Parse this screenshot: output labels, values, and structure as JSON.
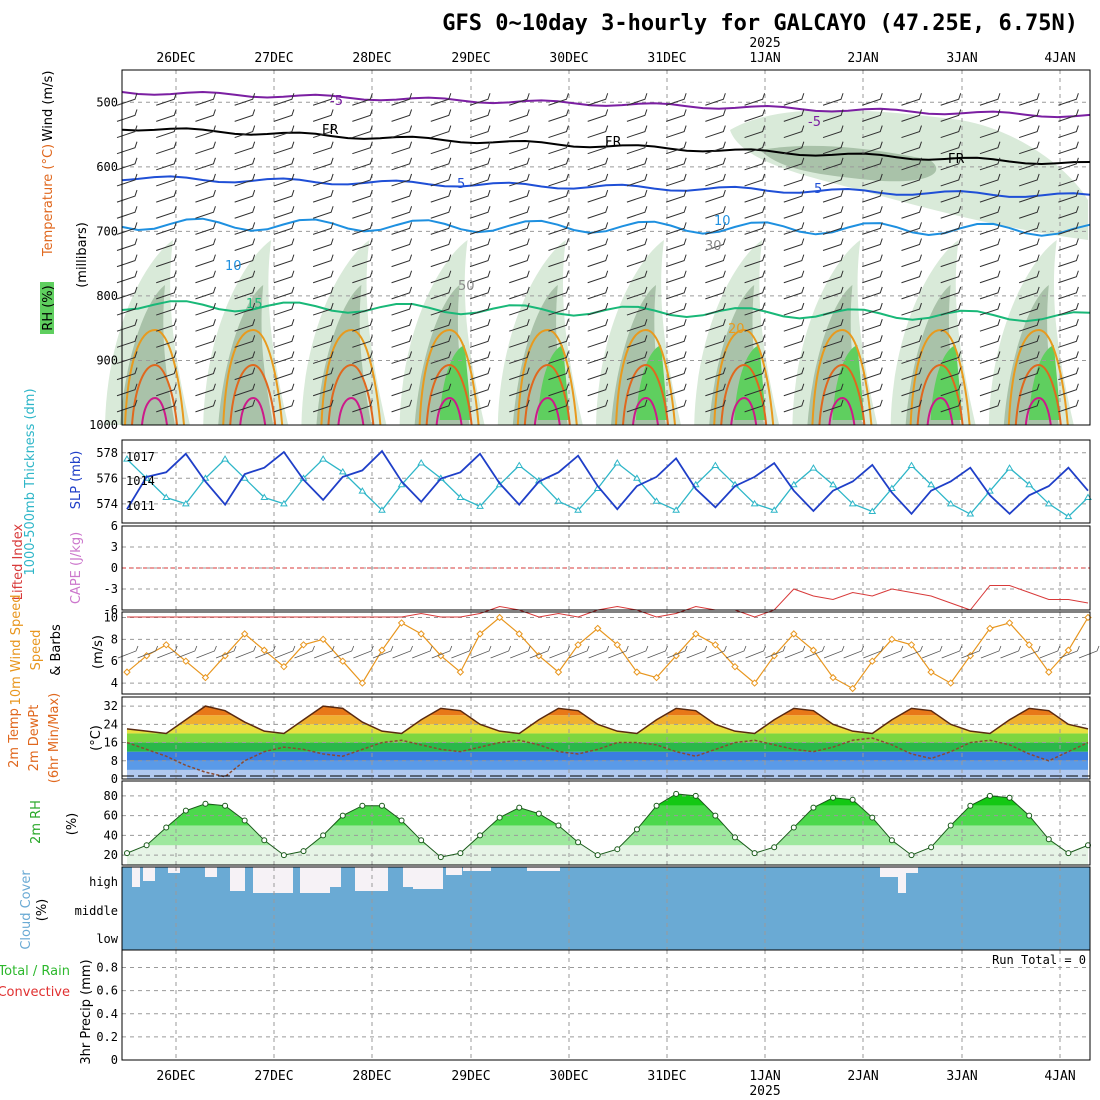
{
  "title": "GFS 0~10day 3-hourly for GALCAYO (47.25E, 6.75N)",
  "year_label": "2025",
  "dates": [
    "26DEC",
    "27DEC",
    "28DEC",
    "29DEC",
    "30DEC",
    "31DEC",
    "1JAN",
    "2JAN",
    "3JAN",
    "4JAN"
  ],
  "colors": {
    "rh_green": "#5fcf5f",
    "rh_light": "#d9ead9",
    "rh_mid": "#a9c2a9",
    "temp_purple": "#7b1fa2",
    "temp_black": "#000000",
    "temp_blue5": "#1f4fd6",
    "temp_blue10": "#1e90e0",
    "temp_15": "#19b878",
    "temp_20": "#e89a1e",
    "temp_25": "#e0681e",
    "temp_30": "#cc1a8a",
    "slp": "#1f3fc8",
    "thickness": "#2eb6c8",
    "li": "#d83a3a",
    "cape": "#cc77cc",
    "wind10": "#e8961e",
    "cloud": "#6aaad4",
    "precip_total": "#2db82d",
    "precip_conv": "#e03030"
  },
  "panels": {
    "upper": {
      "label_rh": "RH (%)",
      "label_temp": "Temperature (°C)",
      "label_wind": "Wind (m/s)",
      "axis_label": "(millibars)",
      "pressure_ticks": [
        "500",
        "600",
        "700",
        "800",
        "900",
        "1000"
      ],
      "contour_labels": [
        "-5",
        "FR",
        "5",
        "10",
        "15",
        "20",
        "30",
        "50"
      ]
    },
    "slp": {
      "label_thick": "1000-500mb Thickness (dm)",
      "label_slp": "SLP (mb)",
      "left_ticks": [
        "578",
        "576",
        "574"
      ],
      "right_ticks": [
        "1017",
        "1014",
        "1011"
      ]
    },
    "li": {
      "label_li": "Lifted Index",
      "label_cape": "CAPE (J/kg)",
      "ticks": [
        "-6",
        "-3",
        "0",
        "3",
        "6"
      ]
    },
    "wind": {
      "label_a": "10m Wind Speed",
      "label_b": "& Barbs",
      "unit": "(m/s)",
      "ticks": [
        "10",
        "8",
        "6",
        "4"
      ]
    },
    "temp": {
      "label_a": "2m Temp",
      "label_b": "2m DewPt",
      "label_c": "(6hr Min/Max)",
      "unit": "(°C)",
      "ticks": [
        "32",
        "24",
        "16",
        "8",
        "0"
      ]
    },
    "rh": {
      "label": "2m RH",
      "unit": "(%)",
      "ticks": [
        "80",
        "60",
        "40",
        "20"
      ]
    },
    "cloud": {
      "label": "Cloud Cover",
      "unit": "(%)",
      "levels": [
        "high",
        "middle",
        "low"
      ]
    },
    "precip": {
      "label_a": "Total / Rain",
      "label_b": "Convective",
      "label_c": "3hr Precip (mm)",
      "ticks": [
        "0.8",
        "0.6",
        "0.4",
        "0.2",
        "0"
      ],
      "run_total": "Run Total = 0"
    }
  },
  "chart_data": [
    {
      "type": "line",
      "title": "1000-500mb Thickness / SLP",
      "series": [
        {
          "name": "SLP (mb)",
          "values": [
            1011.0,
            1014.5,
            1015.0,
            1017.0,
            1014.0,
            1011.5,
            1014.8,
            1015.5,
            1017.2,
            1014.2,
            1012.0,
            1014.5,
            1015.2,
            1017.3,
            1014.0,
            1011.8,
            1014.3,
            1015.0,
            1017.0,
            1013.8,
            1011.5,
            1014.0,
            1015.0,
            1016.8,
            1013.5,
            1011.0,
            1013.5,
            1014.5,
            1016.5,
            1013.2,
            1011.2,
            1013.5,
            1014.5,
            1016.0,
            1013.0,
            1010.8,
            1013.0,
            1014.0,
            1015.8,
            1012.8,
            1010.5,
            1013.0,
            1014.0,
            1015.5,
            1012.5,
            1010.5,
            1012.5,
            1013.5,
            1015.5,
            1013.0
          ]
        },
        {
          "name": "Thickness (dm)",
          "values": [
            577.5,
            576.0,
            574.5,
            574.0,
            576.0,
            577.5,
            576.0,
            574.5,
            574.0,
            576.0,
            577.5,
            576.5,
            575.0,
            573.5,
            575.5,
            577.2,
            576.0,
            574.5,
            573.8,
            575.5,
            577.0,
            575.8,
            574.2,
            573.5,
            575.2,
            577.2,
            576.0,
            574.2,
            573.5,
            575.5,
            577.0,
            575.5,
            574.0,
            573.5,
            575.5,
            576.8,
            575.5,
            574.0,
            573.4,
            575.2,
            577.0,
            575.5,
            574.0,
            573.2,
            575.0,
            576.8,
            575.5,
            574.0,
            573.0,
            574.5
          ]
        }
      ],
      "ylim": [
        572.5,
        579
      ]
    },
    {
      "type": "line",
      "title": "10m Wind Speed",
      "series": [
        {
          "name": "10m Wind Speed (m/s)",
          "values": [
            5.0,
            6.5,
            7.5,
            6.0,
            4.5,
            6.5,
            8.5,
            7.0,
            5.5,
            7.5,
            8.0,
            6.0,
            4.0,
            7.0,
            9.5,
            8.5,
            6.5,
            5.0,
            8.5,
            10.0,
            8.5,
            6.5,
            5.0,
            7.5,
            9.0,
            7.5,
            5.0,
            4.5,
            6.5,
            8.5,
            7.5,
            5.5,
            4.0,
            6.5,
            8.5,
            7.0,
            4.5,
            3.5,
            6.0,
            8.0,
            7.5,
            5.0,
            4.0,
            6.5,
            9.0,
            9.5,
            7.5,
            5.0,
            7.0,
            10.0
          ]
        }
      ],
      "ylim": [
        3,
        10.5
      ]
    },
    {
      "type": "area",
      "title": "2m Temp / DewPt",
      "series": [
        {
          "name": "2m Temp (°C)",
          "values": [
            22,
            21,
            20,
            26,
            32,
            30,
            25,
            21,
            20,
            26,
            32,
            31,
            25,
            21,
            20,
            26,
            31,
            30,
            24,
            21,
            20,
            26,
            31,
            30,
            24,
            21,
            20,
            26,
            31,
            30,
            24,
            21,
            20,
            26,
            31,
            30,
            24,
            21,
            20,
            26,
            31,
            30,
            24,
            21,
            20,
            26,
            31,
            30,
            24,
            22
          ]
        },
        {
          "name": "2m DewPt (°C)",
          "values": [
            16,
            13,
            10,
            6,
            3,
            1,
            8,
            12,
            14,
            13,
            11,
            10,
            13,
            16,
            17,
            15,
            13,
            12,
            14,
            16,
            17,
            15,
            12,
            11,
            13,
            16,
            16,
            15,
            12,
            10,
            13,
            16,
            17,
            15,
            13,
            12,
            14,
            17,
            18,
            15,
            11,
            9,
            12,
            16,
            17,
            15,
            11,
            8,
            12,
            16
          ]
        }
      ],
      "ylim": [
        0,
        36
      ]
    },
    {
      "type": "area",
      "title": "2m RH",
      "series": [
        {
          "name": "2m RH (%)",
          "values": [
            22,
            30,
            48,
            65,
            72,
            70,
            55,
            35,
            20,
            24,
            40,
            60,
            70,
            70,
            55,
            35,
            18,
            22,
            40,
            58,
            68,
            62,
            50,
            33,
            20,
            26,
            46,
            70,
            82,
            80,
            60,
            38,
            22,
            28,
            48,
            68,
            78,
            76,
            58,
            35,
            20,
            28,
            50,
            70,
            80,
            78,
            60,
            36,
            22,
            30
          ]
        }
      ],
      "ylim": [
        10,
        95
      ]
    }
  ]
}
